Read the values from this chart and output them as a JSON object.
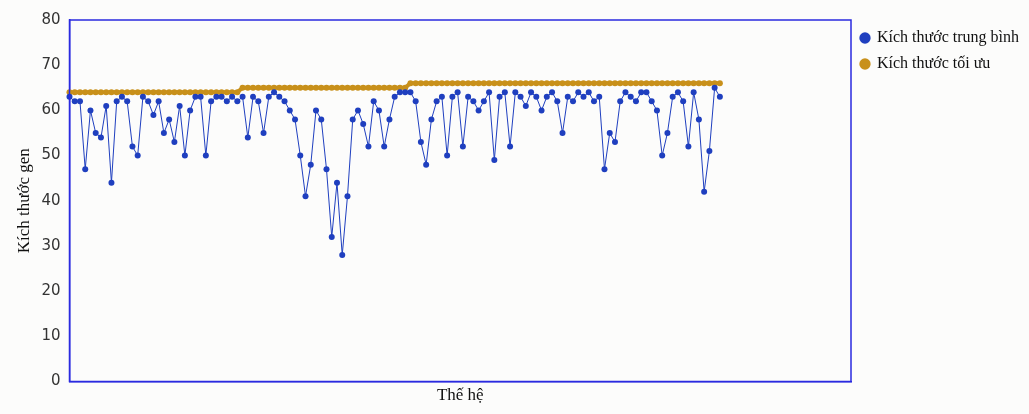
{
  "chart_data": {
    "type": "line",
    "xlabel": "Thế hệ",
    "ylabel": "Kích thước gen",
    "categories": [
      null,
      null,
      null,
      null,
      null,
      null,
      null,
      null,
      null,
      null,
      null,
      null,
      null,
      null,
      null,
      null,
      null,
      null,
      null,
      null,
      null,
      null,
      null,
      null,
      null,
      null,
      null,
      null,
      null,
      null,
      null,
      null,
      null,
      null,
      null,
      null,
      null,
      null,
      null,
      null,
      null,
      null,
      null,
      null,
      null,
      null,
      null,
      null,
      null,
      null,
      null,
      null,
      null,
      null,
      null,
      null,
      null,
      null,
      null,
      null,
      null,
      null,
      null,
      null,
      null,
      null,
      null,
      null,
      null,
      null,
      null,
      null,
      null,
      null,
      null,
      null,
      null,
      null,
      null,
      null,
      null,
      null,
      null,
      null,
      null,
      null,
      null,
      null,
      null,
      null,
      null,
      null,
      null,
      null,
      null,
      null,
      null,
      null,
      null,
      null,
      null,
      null,
      null,
      null,
      null,
      null,
      null,
      null,
      null,
      null,
      null,
      null,
      null,
      null,
      null,
      null,
      null,
      null,
      null,
      null,
      null,
      null,
      null,
      null,
      null,
      null,
      null,
      null,
      null,
      null,
      null,
      null,
      null,
      null,
      null,
      null,
      null,
      null,
      null,
      null,
      null,
      null,
      null,
      null,
      null,
      null,
      null,
      null,
      null,
      null
    ],
    "series": [
      {
        "name": "Kích thước trung bình",
        "color": "#1f3fbf",
        "values": [
          63,
          62,
          62,
          47,
          60,
          55,
          54,
          61,
          44,
          62,
          63,
          62,
          52,
          50,
          63,
          62,
          59,
          62,
          55,
          58,
          53,
          61,
          50,
          60,
          63,
          63,
          50,
          62,
          63,
          63,
          62,
          63,
          62,
          63,
          54,
          63,
          62,
          55,
          63,
          64,
          63,
          62,
          60,
          58,
          50,
          41,
          48,
          60,
          58,
          47,
          32,
          44,
          28,
          41,
          58,
          60,
          57,
          52,
          62,
          60,
          52,
          58,
          63,
          64,
          64,
          64,
          62,
          53,
          48,
          58,
          62,
          63,
          50,
          63,
          64,
          52,
          63,
          62,
          60,
          62,
          64,
          49,
          63,
          64,
          52,
          64,
          63,
          61,
          64,
          63,
          60,
          63,
          64,
          62,
          55,
          63,
          62,
          64,
          63,
          64,
          62,
          63,
          47,
          55,
          53,
          62,
          64,
          63,
          62,
          64,
          64,
          62,
          60,
          50,
          55,
          63,
          64,
          62,
          52,
          64,
          58,
          42,
          51,
          65,
          63,
          null,
          null,
          null,
          null,
          null,
          null,
          null,
          null,
          null,
          null,
          null,
          null,
          null,
          null,
          null,
          null,
          null,
          null,
          null,
          null,
          null,
          null,
          null,
          null,
          null
        ]
      },
      {
        "name": "Kích thước tối ưu",
        "color": "#c8901a",
        "values": [
          64,
          64,
          64,
          64,
          64,
          64,
          64,
          64,
          64,
          64,
          64,
          64,
          64,
          64,
          64,
          64,
          64,
          64,
          64,
          64,
          64,
          64,
          64,
          64,
          64,
          64,
          64,
          64,
          64,
          64,
          64,
          64,
          64,
          65,
          65,
          65,
          65,
          65,
          65,
          65,
          65,
          65,
          65,
          65,
          65,
          65,
          65,
          65,
          65,
          65,
          65,
          65,
          65,
          65,
          65,
          65,
          65,
          65,
          65,
          65,
          65,
          65,
          65,
          65,
          65,
          66,
          66,
          66,
          66,
          66,
          66,
          66,
          66,
          66,
          66,
          66,
          66,
          66,
          66,
          66,
          66,
          66,
          66,
          66,
          66,
          66,
          66,
          66,
          66,
          66,
          66,
          66,
          66,
          66,
          66,
          66,
          66,
          66,
          66,
          66,
          66,
          66,
          66,
          66,
          66,
          66,
          66,
          66,
          66,
          66,
          66,
          66,
          66,
          66,
          66,
          66,
          66,
          66,
          66,
          66,
          66,
          66,
          66,
          66,
          66,
          null,
          null,
          null,
          null,
          null,
          null,
          null,
          null,
          null,
          null,
          null,
          null,
          null,
          null,
          null,
          null,
          null,
          null,
          null,
          null,
          null,
          null,
          null,
          null,
          null
        ]
      }
    ],
    "ylim": [
      0,
      80
    ],
    "yticks": [
      0,
      10,
      20,
      30,
      40,
      50,
      60,
      70,
      80
    ],
    "grid": false,
    "legend": "top right",
    "marker": "circle",
    "line_style": "solid"
  }
}
